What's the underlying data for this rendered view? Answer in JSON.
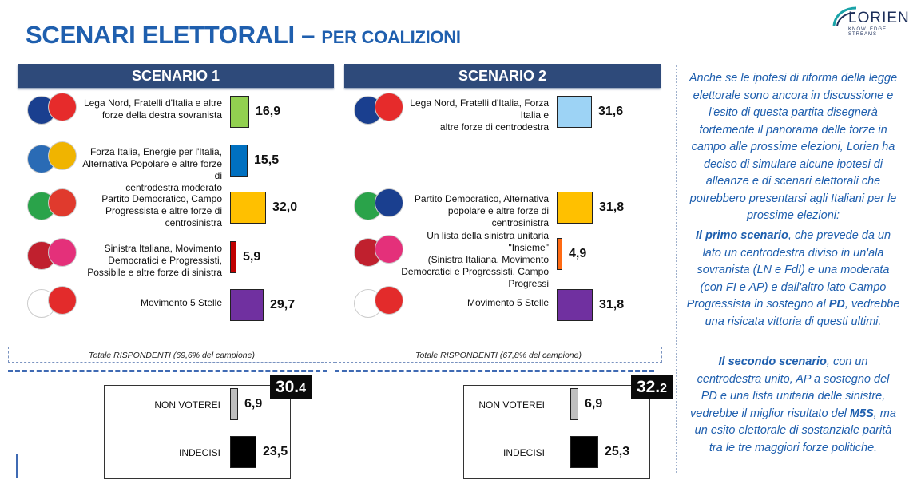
{
  "header": {
    "title_main": "SCENARI ELETTORALI",
    "title_dash": "–",
    "title_sub": "PER COALIZIONI",
    "logo_text": "LORIEN",
    "logo_sub": "KNOWLEDGE STREAMS"
  },
  "chart_data": [
    {
      "type": "bar",
      "title": "SCENARIO 1",
      "categories": [
        "Lega Nord, Fratelli d'Italia e altre forze della destra sovranista",
        "Forza Italia, Energie per l'Italia, Alternativa Popolare e altre forze di centrodestra moderato",
        "Partito Democratico, Campo Progressista e altre forze di centrosinistra",
        "Sinistra Italiana, Movimento Democratici e Progressisti, Possibile e altre forze di sinistra",
        "Movimento 5 Stelle"
      ],
      "category_lines": [
        [
          "Lega Nord, Fratelli d'Italia e altre",
          "forze della destra sovranista"
        ],
        [
          "Forza Italia, Energie per l'Italia,",
          "Alternativa Popolare e altre forze di",
          "centrodestra moderato"
        ],
        [
          "Partito Democratico, Campo",
          "Progressista e altre forze di",
          "centrosinistra"
        ],
        [
          "Sinistra Italiana, Movimento",
          "Democratici e Progressisti,",
          "Possibile e altre forze di sinistra"
        ],
        [
          "Movimento 5 Stelle"
        ]
      ],
      "values": [
        16.9,
        15.5,
        32.0,
        5.9,
        29.7
      ],
      "value_labels": [
        "16,9",
        "15,5",
        "32,0",
        "5,9",
        "29,7"
      ],
      "colors": [
        "#92d050",
        "#0070c0",
        "#ffc000",
        "#c00000",
        "#7030a0"
      ],
      "logos": [
        "LEGA NORD / FRATELLI D'ITALIA",
        "FORZA ITALIA / ALTERNATIVA POPOLARE / PER",
        "PD / CAMPO PROGRESSISTA",
        "Art. 1 / SI / POSSIBILE",
        "MOVIMENTO 5 STELLE"
      ],
      "total": "Totale RISPONDENTI (69,6% del campione)",
      "abstention": {
        "badge": "30.",
        "badge_small": "4",
        "categories": [
          "NON VOTEREI",
          "INDECISI"
        ],
        "values": [
          6.9,
          23.5
        ],
        "value_labels": [
          "6,9",
          "23,5"
        ],
        "colors": [
          "#bfbfbf",
          "#000000"
        ]
      }
    },
    {
      "type": "bar",
      "title": "SCENARIO 2",
      "categories": [
        "Lega Nord, Fratelli d'Italia, Forza Italia e altre forze di centrodestra",
        "Partito Democratico, Alternativa popolare e altre forze di centrosinistra",
        "Un lista della sinistra unitaria \"Insieme\" (Sinistra Italiana, Movimento Democratici e Progressisti, Campo Progressi",
        "Movimento 5 Stelle"
      ],
      "category_lines": [
        [
          "Lega Nord, Fratelli d'Italia, Forza Italia e",
          "altre forze di centrodestra"
        ],
        [
          "Partito Democratico, Alternativa",
          "popolare e altre forze di centrosinistra"
        ],
        [
          "Un lista della sinistra unitaria \"Insieme\"",
          "(Sinistra Italiana, Movimento",
          "Democratici e Progressisti, Campo",
          "Progressi"
        ],
        [
          "Movimento 5 Stelle"
        ]
      ],
      "values": [
        31.6,
        31.8,
        4.9,
        31.8
      ],
      "value_labels": [
        "31,6",
        "31,8",
        "4,9",
        "31,8"
      ],
      "colors": [
        "#9dd3f5",
        "#ffc000",
        "#ff6a13",
        "#7030a0"
      ],
      "logos": [
        "LEGA NORD / FRATELLI D'ITALIA / FORZA ITALIA",
        "PD / ALTERNATIVA POPOLARE",
        "Art. 1 / SI / POSSIBILE / CAMPO PROGRESSISTA",
        "MOVIMENTO 5 STELLE"
      ],
      "total": "Totale RISPONDENTI (67,8% del campione)",
      "abstention": {
        "badge": "32.",
        "badge_small": "2",
        "categories": [
          "NON VOTEREI",
          "INDECISI"
        ],
        "values": [
          6.9,
          25.3
        ],
        "value_labels": [
          "6,9",
          "25,3"
        ],
        "colors": [
          "#bfbfbf",
          "#000000"
        ]
      }
    }
  ],
  "commentary": {
    "p1": "Anche se le ipotesi di riforma della legge elettorale sono ancora in discussione e l'esito di questa partita disegnerà fortemente il panorama delle forze in campo alle prossime elezioni, Lorien ha deciso di simulare alcune ipotesi di alleanze e di scenari elettorali che potrebbero presentarsi agli Italiani per le prossime elezioni:",
    "p2_bold1": "Il primo scenario",
    "p2_a": ", che prevede da un lato un centrodestra diviso in un'ala sovranista (LN e FdI) e una moderata (con FI e AP) e dall'altro lato Campo Progressista in sostegno al ",
    "p2_bold2": "PD",
    "p2_b": ", vedrebbe una risicata vittoria di questi ultimi.",
    "p3_bold1": "Il secondo scenario",
    "p3_a": ", con un centrodestra unito, AP a sostegno del PD e una lista unitaria delle sinistre, vedrebbe il miglior risultato del ",
    "p3_bold2": "M5S",
    "p3_b": ", ma un esito elettorale di sostanziale parità tra le tre maggiori forze politiche."
  }
}
